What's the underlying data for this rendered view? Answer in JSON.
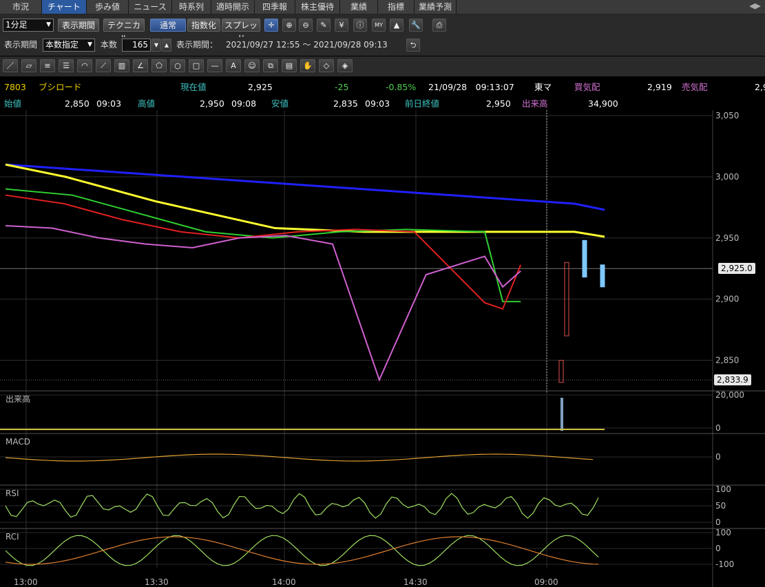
{
  "tabs": [
    "市況",
    "チャート",
    "歩み値",
    "ニュース",
    "時系列",
    "適時開示",
    "四季報",
    "株主優待",
    "業績",
    "指標",
    "業績予測"
  ],
  "active_tab": "チャート",
  "toolbar": {
    "interval": "1分足",
    "period_button": "表示期間",
    "technical_button": "テクニカル",
    "normal_button": "通常",
    "index_button": "指数化",
    "spread_button": "スプレッド",
    "icons": [
      "crosshair-icon",
      "zoom-in-icon",
      "zoom-out-icon",
      "pen-icon",
      "yen-icon",
      "info-icon",
      "my-icon",
      "chart-area-icon",
      "wrench-icon",
      "print-icon"
    ]
  },
  "period_row": {
    "label": "表示期間",
    "mode": "本数指定",
    "count_label": "本数",
    "count": "165",
    "range_label": "表示期間：",
    "range": "2021/09/27 12:55 ～ 2021/09/28 09:13"
  },
  "draw_tools": [
    "line-tool-icon",
    "ruler-tool-icon",
    "parallel-tool-icon",
    "multi-line-tool-icon",
    "arc-tool-icon",
    "fan-tool-icon",
    "grid-tool-icon",
    "angle-tool-icon",
    "pentagon-tool-icon",
    "circle-tool-icon",
    "rectangle-tool-icon",
    "hline-tool-icon",
    "text-tool-icon",
    "stamp-tool-icon",
    "copy-tool-icon",
    "paste-tool-icon",
    "hand-tool-icon",
    "eraser-tool-icon",
    "clear-tool-icon"
  ],
  "quote": {
    "code": "7803",
    "name": "ブシロード",
    "current_label": "現在値",
    "current": "2,925",
    "change": "-25",
    "change_pct": "-0.85%",
    "datetime": "21/09/28　09:13:07",
    "market": "東マ",
    "bid_label": "買気配",
    "bid": "2,919",
    "ask_label": "売気配",
    "ask": "2,9",
    "open_label": "始値",
    "open": "2,850",
    "open_time": "09:03",
    "high_label": "高値",
    "high": "2,950",
    "high_time": "09:08",
    "low_label": "安値",
    "low": "2,835",
    "low_time": "09:03",
    "prev_label": "前日終値",
    "prev": "2,950",
    "volume_label": "出来高",
    "volume": "34,900"
  },
  "chart_data": {
    "type": "line",
    "price_axis": [
      "3,050",
      "3,000",
      "2,950",
      "2,900",
      "2,850"
    ],
    "price_ylim": [
      2825,
      3050
    ],
    "current_price_tag": "2,925.0",
    "low_price_tag": "2,833.9",
    "x_ticks": [
      "13:00",
      "13:30",
      "14:00",
      "14:30",
      "09:00"
    ],
    "panels": [
      {
        "name": "出来高",
        "axis": [
          "20,000",
          "0"
        ]
      },
      {
        "name": "MACD",
        "axis": [
          "0"
        ]
      },
      {
        "name": "RSI",
        "axis": [
          "100",
          "50",
          "0"
        ]
      },
      {
        "name": "RCI",
        "axis": [
          "100",
          "0",
          "-100"
        ]
      }
    ],
    "series": [
      {
        "color": "#2020ff",
        "x": [
          0,
          0.95,
          1
        ],
        "values": [
          3010,
          2978,
          2973
        ]
      },
      {
        "color": "#ffff30",
        "x": [
          0,
          0.1,
          0.25,
          0.45,
          0.6,
          0.95,
          1
        ],
        "values": [
          3010,
          3000,
          2980,
          2958,
          2955,
          2955,
          2951
        ]
      },
      {
        "color": "#30d030",
        "values": [
          2990,
          2985,
          2970,
          2955,
          2950,
          2955,
          2957,
          2955,
          2898,
          2898
        ]
      },
      {
        "color": "#e02020",
        "values": [
          2985,
          2978,
          2965,
          2955,
          2950,
          2955,
          2957,
          2955,
          2897,
          2892,
          2928
        ]
      },
      {
        "color": "#d060d0",
        "values": [
          2960,
          2958,
          2950,
          2945,
          2942,
          2950,
          2952,
          2945,
          2834,
          2920,
          2935,
          2910,
          2923
        ]
      }
    ]
  }
}
